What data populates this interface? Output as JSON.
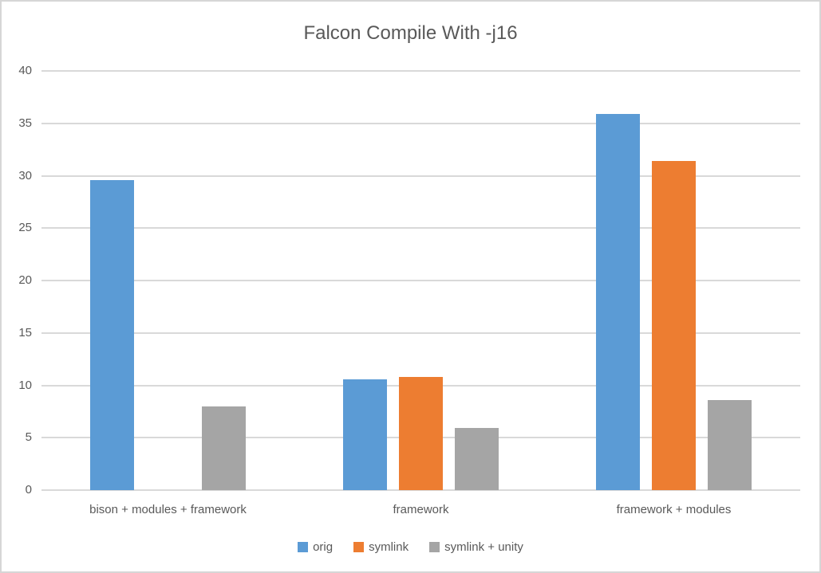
{
  "title": "Falcon Compile With -j16",
  "colors": {
    "series_blue": "#5B9BD5",
    "series_orange": "#ED7D31",
    "series_gray": "#A5A5A5",
    "gridline": "#D9D9D9",
    "text": "#595959",
    "frame_border": "#D6D6D6",
    "background": "#FFFFFF"
  },
  "chart_data": {
    "type": "bar",
    "title": "Falcon Compile With -j16",
    "categories": [
      "bison + modules + framework",
      "framework",
      "framework + modules"
    ],
    "series": [
      {
        "name": "orig",
        "color": "#5B9BD5",
        "values": [
          29.6,
          10.6,
          35.9
        ]
      },
      {
        "name": "symlink",
        "color": "#ED7D31",
        "values": [
          0,
          10.8,
          31.4
        ]
      },
      {
        "name": "symlink + unity",
        "color": "#A5A5A5",
        "values": [
          8.0,
          5.9,
          8.6
        ]
      }
    ],
    "xlabel": "",
    "ylabel": "",
    "ylim": [
      0,
      40
    ],
    "ytick_step": 5,
    "yticks": [
      0,
      5,
      10,
      15,
      20,
      25,
      30,
      35,
      40
    ],
    "grid": true,
    "legend_position": "bottom",
    "legend_entries": [
      "orig",
      "symlink",
      "symlink + unity"
    ]
  }
}
